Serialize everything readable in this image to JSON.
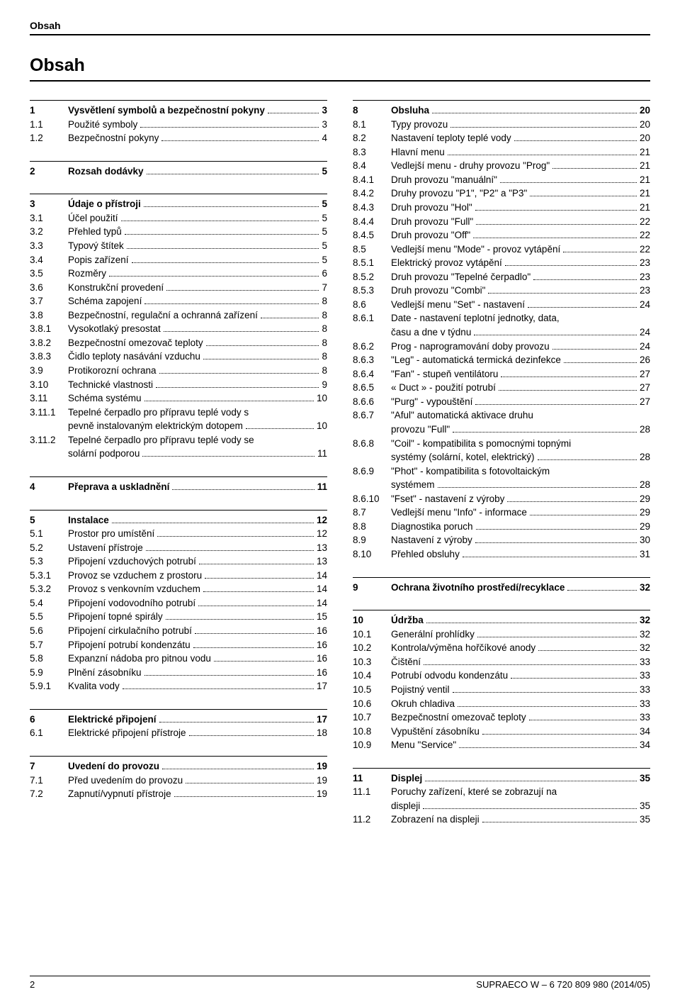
{
  "running_head": "Obsah",
  "title": "Obsah",
  "footer": {
    "page": "2",
    "doc": "SUPRAECO W – 6 720 809 980 (2014/05)"
  },
  "left": [
    {
      "group": [
        {
          "n": "1",
          "t": "Vysvětlení symbolů a bezpečnostní pokyny",
          "p": "3",
          "bold": true
        },
        {
          "n": "1.1",
          "t": "Použité symboly",
          "p": "3"
        },
        {
          "n": "1.2",
          "t": "Bezpečnostní pokyny",
          "p": "4"
        }
      ]
    },
    {
      "group": [
        {
          "n": "2",
          "t": "Rozsah dodávky",
          "p": "5",
          "bold": true
        }
      ]
    },
    {
      "group": [
        {
          "n": "3",
          "t": "Údaje o přístroji",
          "p": "5",
          "bold": true
        },
        {
          "n": "3.1",
          "t": "Účel použití",
          "p": "5"
        },
        {
          "n": "3.2",
          "t": "Přehled typů",
          "p": "5"
        },
        {
          "n": "3.3",
          "t": "Typový štítek",
          "p": "5"
        },
        {
          "n": "3.4",
          "t": "Popis zařízení",
          "p": "5"
        },
        {
          "n": "3.5",
          "t": "Rozměry",
          "p": "6"
        },
        {
          "n": "3.6",
          "t": "Konstrukční provedení",
          "p": "7"
        },
        {
          "n": "3.7",
          "t": "Schéma zapojení",
          "p": "8"
        },
        {
          "n": "3.8",
          "t": "Bezpečnostní, regulační a ochranná zařízení",
          "p": "8"
        },
        {
          "n": "3.8.1",
          "t": "Vysokotlaký presostat",
          "p": "8"
        },
        {
          "n": "3.8.2",
          "t": "Bezpečnostní omezovač teploty",
          "p": "8"
        },
        {
          "n": "3.8.3",
          "t": "Čidlo teploty nasávání vzduchu",
          "p": "8"
        },
        {
          "n": "3.9",
          "t": "Protikorozní ochrana",
          "p": "8"
        },
        {
          "n": "3.10",
          "t": "Technické vlastnosti",
          "p": "9"
        },
        {
          "n": "3.11",
          "t": "Schéma systému",
          "p": "10"
        },
        {
          "n": "3.11.1",
          "t": "Tepelné čerpadlo pro přípravu teplé vody s",
          "cont": "pevně instalovaným elektrickým dotopem",
          "p": "10"
        },
        {
          "n": "3.11.2",
          "t": "Tepelné čerpadlo pro přípravu teplé vody se",
          "cont": "solární podporou",
          "p": "11"
        }
      ]
    },
    {
      "group": [
        {
          "n": "4",
          "t": "Přeprava a uskladnění",
          "p": "11",
          "bold": true
        }
      ]
    },
    {
      "group": [
        {
          "n": "5",
          "t": "Instalace",
          "p": "12",
          "bold": true
        },
        {
          "n": "5.1",
          "t": "Prostor pro umístění",
          "p": "12"
        },
        {
          "n": "5.2",
          "t": "Ustavení přístroje",
          "p": "13"
        },
        {
          "n": "5.3",
          "t": "Připojení vzduchových potrubí",
          "p": "13"
        },
        {
          "n": "5.3.1",
          "t": "Provoz se vzduchem z prostoru",
          "p": "14"
        },
        {
          "n": "5.3.2",
          "t": "Provoz s venkovním vzduchem",
          "p": "14"
        },
        {
          "n": "5.4",
          "t": "Připojení vodovodního potrubí",
          "p": "14"
        },
        {
          "n": "5.5",
          "t": "Připojení topné spirály",
          "p": "15"
        },
        {
          "n": "5.6",
          "t": "Připojení cirkulačního potrubí",
          "p": "16"
        },
        {
          "n": "5.7",
          "t": "Připojení potrubí kondenzátu",
          "p": "16"
        },
        {
          "n": "5.8",
          "t": "Expanzní nádoba pro pitnou vodu",
          "p": "16"
        },
        {
          "n": "5.9",
          "t": "Plnění zásobníku",
          "p": "16"
        },
        {
          "n": "5.9.1",
          "t": "Kvalita vody",
          "p": "17"
        }
      ]
    },
    {
      "group": [
        {
          "n": "6",
          "t": "Elektrické připojení",
          "p": "17",
          "bold": true
        },
        {
          "n": "6.1",
          "t": "Elektrické připojení přístroje",
          "p": "18"
        }
      ]
    },
    {
      "group": [
        {
          "n": "7",
          "t": "Uvedení do provozu",
          "p": "19",
          "bold": true
        },
        {
          "n": "7.1",
          "t": "Před uvedením do provozu",
          "p": "19"
        },
        {
          "n": "7.2",
          "t": "Zapnutí/vypnutí přístroje",
          "p": "19"
        }
      ]
    }
  ],
  "right": [
    {
      "group": [
        {
          "n": "8",
          "t": "Obsluha",
          "p": "20",
          "bold": true
        },
        {
          "n": "8.1",
          "t": "Typy provozu",
          "p": "20"
        },
        {
          "n": "8.2",
          "t": "Nastavení teploty teplé vody",
          "p": "20"
        },
        {
          "n": "8.3",
          "t": "Hlavní menu",
          "p": "21"
        },
        {
          "n": "8.4",
          "t": "Vedlejší menu - druhy provozu \"Prog\"",
          "p": "21"
        },
        {
          "n": "8.4.1",
          "t": "Druh provozu \"manuální\"",
          "p": "21"
        },
        {
          "n": "8.4.2",
          "t": "Druhy provozu \"P1\", \"P2\" a \"P3\"",
          "p": "21"
        },
        {
          "n": "8.4.3",
          "t": "Druh provozu \"Hol\"",
          "p": "21"
        },
        {
          "n": "8.4.4",
          "t": "Druh provozu \"Full\"",
          "p": "22"
        },
        {
          "n": "8.4.5",
          "t": "Druh provozu \"Off\"",
          "p": "22"
        },
        {
          "n": "8.5",
          "t": "Vedlejší menu \"Mode\" - provoz vytápění",
          "p": "22"
        },
        {
          "n": "8.5.1",
          "t": "Elektrický provoz vytápění",
          "p": "23"
        },
        {
          "n": "8.5.2",
          "t": "Druh provozu \"Tepelné čerpadlo\"",
          "p": "23"
        },
        {
          "n": "8.5.3",
          "t": "Druh provozu \"Combi\"",
          "p": "23"
        },
        {
          "n": "8.6",
          "t": "Vedlejší menu \"Set\" - nastavení",
          "p": "24"
        },
        {
          "n": "8.6.1",
          "t": "Date - nastavení teplotní jednotky, data,",
          "cont": "času a dne v týdnu",
          "p": "24"
        },
        {
          "n": "8.6.2",
          "t": "Prog - naprogramování doby provozu",
          "p": "24"
        },
        {
          "n": "8.6.3",
          "t": "\"Leg\" - automatická termická dezinfekce",
          "p": "26"
        },
        {
          "n": "8.6.4",
          "t": "\"Fan\" - stupeň ventilátoru",
          "p": "27"
        },
        {
          "n": "8.6.5",
          "t": "« Duct » - použití potrubí",
          "p": "27"
        },
        {
          "n": "8.6.6",
          "t": "\"Purg\" - vypouštění",
          "p": "27"
        },
        {
          "n": "8.6.7",
          "t": "\"Aful\" automatická aktivace druhu",
          "cont": "provozu \"Full\"",
          "p": "28"
        },
        {
          "n": "8.6.8",
          "t": "\"Coil\" - kompatibilita s pomocnými topnými",
          "cont": "systémy (solární, kotel, elektrický)",
          "p": "28"
        },
        {
          "n": "8.6.9",
          "t": "\"Phot\" - kompatibilita s fotovoltaickým",
          "cont": "systémem",
          "p": "28"
        },
        {
          "n": "8.6.10",
          "t": "\"Fset\" - nastavení z výroby",
          "p": "29"
        },
        {
          "n": "8.7",
          "t": "Vedlejší menu \"Info\" - informace",
          "p": "29"
        },
        {
          "n": "8.8",
          "t": "Diagnostika poruch",
          "p": "29"
        },
        {
          "n": "8.9",
          "t": "Nastavení z výroby",
          "p": "30"
        },
        {
          "n": "8.10",
          "t": "Přehled obsluhy",
          "p": "31"
        }
      ]
    },
    {
      "group": [
        {
          "n": "9",
          "t": "Ochrana životního prostředí/recyklace",
          "p": "32",
          "bold": true
        }
      ]
    },
    {
      "group": [
        {
          "n": "10",
          "t": "Údržba",
          "p": "32",
          "bold": true
        },
        {
          "n": "10.1",
          "t": "Generální prohlídky",
          "p": "32"
        },
        {
          "n": "10.2",
          "t": "Kontrola/výměna hořčíkové anody",
          "p": "32"
        },
        {
          "n": "10.3",
          "t": "Čištění",
          "p": "33"
        },
        {
          "n": "10.4",
          "t": "Potrubí odvodu kondenzátu",
          "p": "33"
        },
        {
          "n": "10.5",
          "t": "Pojistný ventil",
          "p": "33"
        },
        {
          "n": "10.6",
          "t": "Okruh chladiva",
          "p": "33"
        },
        {
          "n": "10.7",
          "t": "Bezpečnostní omezovač teploty",
          "p": "33"
        },
        {
          "n": "10.8",
          "t": "Vypuštění zásobníku",
          "p": "34"
        },
        {
          "n": "10.9",
          "t": "Menu \"Service\"",
          "p": "34"
        }
      ]
    },
    {
      "group": [
        {
          "n": "11",
          "t": "Displej",
          "p": "35",
          "bold": true
        },
        {
          "n": "11.1",
          "t": "Poruchy zařízení, které se zobrazují na",
          "cont": "displeji",
          "p": "35"
        },
        {
          "n": "11.2",
          "t": "Zobrazení na displeji",
          "p": "35"
        }
      ]
    }
  ]
}
